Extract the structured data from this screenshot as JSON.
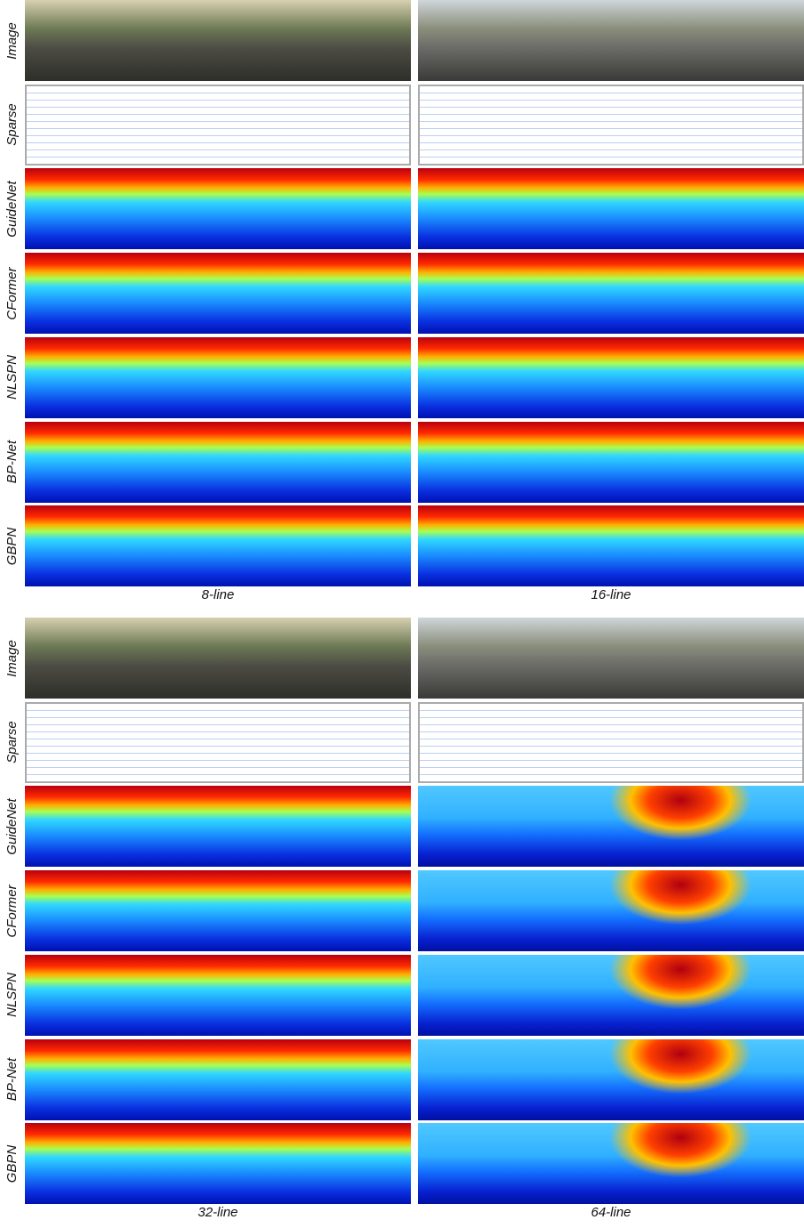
{
  "blocks": [
    {
      "row_labels": [
        "Image",
        "Sparse",
        "GuideNet",
        "CFormer",
        "NLSPN",
        "BP-Net",
        "GBPN"
      ],
      "captions": [
        "8-line",
        "16-line"
      ]
    },
    {
      "row_labels": [
        "Image",
        "Sparse",
        "GuideNet",
        "CFormer",
        "NLSPN",
        "BP-Net",
        "GBPN"
      ],
      "captions": [
        "32-line",
        "64-line"
      ]
    }
  ]
}
